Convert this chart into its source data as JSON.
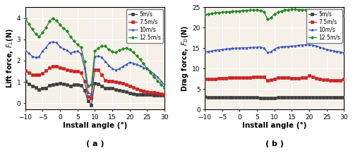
{
  "x": [
    -10,
    -9,
    -8,
    -7,
    -6,
    -5,
    -4,
    -3,
    -2,
    -1,
    0,
    1,
    2,
    3,
    4,
    5,
    6,
    7,
    8,
    9,
    10,
    11,
    12,
    13,
    14,
    15,
    16,
    17,
    18,
    19,
    20,
    21,
    22,
    23,
    24,
    25,
    26,
    27,
    28,
    29,
    30
  ],
  "lift_5": [
    1.03,
    0.9,
    0.82,
    0.75,
    0.65,
    0.72,
    0.72,
    0.85,
    0.88,
    0.9,
    0.92,
    0.9,
    0.88,
    0.82,
    0.88,
    0.88,
    0.85,
    0.62,
    0.12,
    -0.08,
    0.95,
    0.9,
    0.82,
    0.72,
    0.72,
    0.7,
    0.65,
    0.62,
    0.58,
    0.53,
    0.48,
    0.45,
    0.42,
    0.42,
    0.4,
    0.4,
    0.4,
    0.38,
    0.38,
    0.38,
    0.38
  ],
  "lift_75": [
    1.52,
    1.42,
    1.35,
    1.32,
    1.32,
    1.4,
    1.52,
    1.65,
    1.72,
    1.72,
    1.68,
    1.62,
    1.58,
    1.52,
    1.5,
    1.5,
    1.42,
    1.05,
    0.32,
    0.25,
    1.58,
    1.55,
    1.32,
    1.08,
    1.05,
    1.02,
    1.0,
    0.98,
    0.95,
    0.88,
    0.82,
    0.75,
    0.68,
    0.62,
    0.58,
    0.55,
    0.52,
    0.5,
    0.48,
    0.45,
    0.42
  ],
  "lift_10": [
    2.48,
    2.35,
    2.2,
    2.15,
    2.18,
    2.45,
    2.62,
    2.85,
    2.88,
    2.85,
    2.65,
    2.55,
    2.48,
    2.35,
    2.42,
    2.45,
    2.32,
    1.68,
    0.52,
    0.42,
    2.18,
    2.22,
    2.15,
    1.95,
    1.78,
    1.62,
    1.55,
    1.62,
    1.72,
    1.82,
    1.92,
    1.88,
    1.82,
    1.75,
    1.68,
    1.62,
    1.5,
    1.38,
    1.22,
    1.05,
    0.85
  ],
  "lift_125": [
    4.0,
    3.72,
    3.48,
    3.25,
    3.12,
    3.32,
    3.55,
    3.85,
    3.98,
    3.88,
    3.68,
    3.52,
    3.38,
    3.12,
    2.92,
    2.75,
    2.62,
    1.95,
    0.82,
    0.88,
    2.45,
    2.58,
    2.68,
    2.68,
    2.52,
    2.42,
    2.38,
    2.48,
    2.55,
    2.58,
    2.52,
    2.38,
    2.22,
    2.05,
    1.85,
    1.62,
    1.42,
    1.22,
    1.05,
    0.88,
    0.72
  ],
  "drag_5": [
    3.15,
    3.05,
    3.02,
    3.0,
    2.98,
    2.95,
    2.95,
    2.98,
    3.0,
    3.0,
    3.0,
    3.0,
    2.98,
    2.95,
    2.95,
    2.92,
    2.88,
    2.82,
    2.75,
    2.78,
    2.88,
    2.92,
    2.98,
    3.02,
    3.02,
    3.02,
    3.02,
    3.02,
    3.02,
    3.02,
    3.02,
    3.02,
    3.02,
    3.02,
    3.02,
    3.02,
    3.02,
    3.02,
    3.02,
    3.02,
    3.02
  ],
  "drag_75": [
    7.5,
    7.45,
    7.45,
    7.5,
    7.6,
    7.65,
    7.72,
    7.78,
    7.82,
    7.82,
    7.8,
    7.8,
    7.82,
    7.88,
    7.92,
    7.98,
    8.05,
    7.92,
    7.12,
    7.22,
    7.42,
    7.8,
    7.88,
    7.88,
    7.78,
    7.72,
    7.65,
    7.72,
    7.82,
    7.78,
    8.32,
    7.98,
    7.72,
    7.55,
    7.38,
    7.22,
    7.18,
    7.15,
    7.2,
    7.2,
    7.45
  ],
  "drag_10": [
    14.1,
    14.2,
    14.35,
    14.52,
    14.62,
    14.72,
    14.82,
    14.92,
    15.0,
    15.05,
    15.08,
    15.1,
    15.12,
    15.18,
    15.22,
    15.28,
    15.32,
    15.0,
    13.95,
    14.12,
    14.8,
    15.2,
    15.35,
    15.42,
    15.48,
    15.52,
    15.6,
    15.72,
    15.82,
    15.85,
    15.88,
    15.75,
    15.55,
    15.28,
    15.0,
    14.72,
    14.52,
    14.35,
    14.22,
    14.1,
    13.88
  ],
  "drag_125": [
    23.2,
    23.35,
    23.5,
    23.62,
    23.72,
    23.8,
    23.88,
    23.95,
    24.0,
    24.08,
    24.12,
    24.2,
    24.28,
    24.32,
    24.35,
    24.32,
    24.22,
    23.95,
    22.18,
    22.42,
    23.35,
    23.8,
    24.12,
    24.35,
    24.45,
    24.48,
    24.48,
    24.45,
    24.42,
    24.38,
    24.32,
    24.22,
    24.08,
    23.88,
    23.65,
    23.42,
    23.22,
    23.08,
    22.98,
    22.98,
    23.08
  ],
  "colors": [
    "#3d3d3d",
    "#cc2222",
    "#3355bb",
    "#228822"
  ],
  "markers": [
    "s",
    "s",
    "^",
    "D"
  ],
  "labels": [
    "5m/s",
    "7.5m/s",
    "10m/s",
    "12.5m/s"
  ],
  "xlim": [
    -10,
    30
  ],
  "lift_ylim": [
    -0.3,
    4.5
  ],
  "drag_ylim": [
    0,
    25
  ],
  "lift_yticks": [
    0,
    1,
    2,
    3,
    4
  ],
  "drag_yticks": [
    0,
    5,
    10,
    15,
    20,
    25
  ],
  "xticks": [
    -10,
    -5,
    0,
    5,
    10,
    15,
    20,
    25,
    30
  ],
  "xlabel": "Install angle (°)",
  "lift_ylabel": "Lift force, $F_L$(N)",
  "drag_ylabel": "Drag force, $F_D$(N)",
  "label_a": "( a )",
  "label_b": "( b )",
  "bg_color": "#f5f0e8"
}
